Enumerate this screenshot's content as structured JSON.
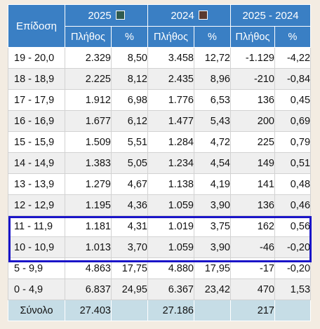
{
  "header": {
    "range_label": "Επίδοση",
    "year_a": "2025",
    "year_b": "2024",
    "diff_label": "2025 - 2024",
    "count_label": "Πλήθος",
    "pct_label": "%",
    "swatch_a_color": "#2f5b50",
    "swatch_b_color": "#5a3a2f"
  },
  "rows": [
    {
      "range": "19 - 20,0",
      "c25": "2.329",
      "p25": "8,50",
      "c24": "3.458",
      "p24": "12,72",
      "dc": "-1.129",
      "dp": "-4,22"
    },
    {
      "range": "18 - 18,9",
      "c25": "2.225",
      "p25": "8,12",
      "c24": "2.435",
      "p24": "8,96",
      "dc": "-210",
      "dp": "-0,84"
    },
    {
      "range": "17 - 17,9",
      "c25": "1.912",
      "p25": "6,98",
      "c24": "1.776",
      "p24": "6,53",
      "dc": "136",
      "dp": "0,45"
    },
    {
      "range": "16 - 16,9",
      "c25": "1.677",
      "p25": "6,12",
      "c24": "1.477",
      "p24": "5,43",
      "dc": "200",
      "dp": "0,69"
    },
    {
      "range": "15 - 15,9",
      "c25": "1.509",
      "p25": "5,51",
      "c24": "1.284",
      "p24": "4,72",
      "dc": "225",
      "dp": "0,79"
    },
    {
      "range": "14 - 14,9",
      "c25": "1.383",
      "p25": "5,05",
      "c24": "1.234",
      "p24": "4,54",
      "dc": "149",
      "dp": "0,51"
    },
    {
      "range": "13 - 13,9",
      "c25": "1.279",
      "p25": "4,67",
      "c24": "1.138",
      "p24": "4,19",
      "dc": "141",
      "dp": "0,48"
    },
    {
      "range": "12 - 12,9",
      "c25": "1.195",
      "p25": "4,36",
      "c24": "1.059",
      "p24": "3,90",
      "dc": "136",
      "dp": "0,46"
    },
    {
      "range": "11 - 11,9",
      "c25": "1.181",
      "p25": "4,31",
      "c24": "1.019",
      "p24": "3,75",
      "dc": "162",
      "dp": "0,56"
    },
    {
      "range": "10 - 10,9",
      "c25": "1.013",
      "p25": "3,70",
      "c24": "1.059",
      "p24": "3,90",
      "dc": "-46",
      "dp": "-0,20"
    },
    {
      "range": "5 - 9,9",
      "c25": "4.863",
      "p25": "17,75",
      "c24": "4.880",
      "p24": "17,95",
      "dc": "-17",
      "dp": "-0,20"
    },
    {
      "range": "0 - 4,9",
      "c25": "6.837",
      "p25": "24,95",
      "c24": "6.367",
      "p24": "23,42",
      "dc": "470",
      "dp": "1,53"
    }
  ],
  "total": {
    "label": "Σύνολο",
    "c25": "27.403",
    "c24": "27.186",
    "dc": "217"
  },
  "highlight_color": "#1a14c8"
}
